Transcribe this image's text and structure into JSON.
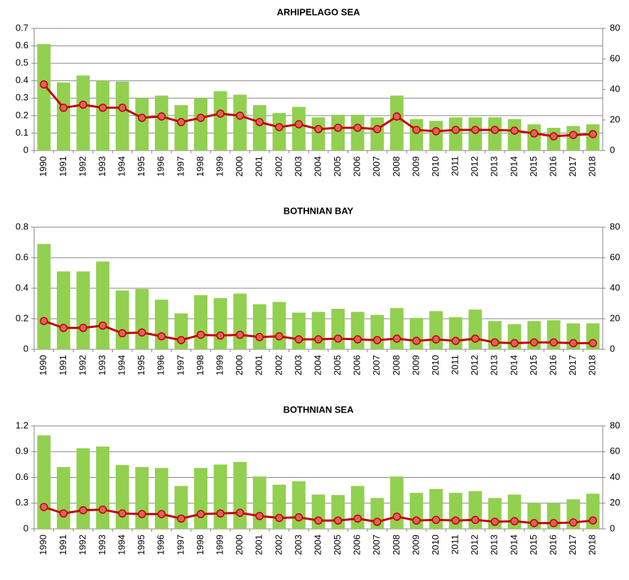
{
  "chart_data": [
    {
      "type": "bar",
      "title": "ARHIPELAGO SEA",
      "categories": [
        "1990",
        "1991",
        "1992",
        "1993",
        "1994",
        "1995",
        "1996",
        "1997",
        "1998",
        "1999",
        "2000",
        "2001",
        "2002",
        "2003",
        "2004",
        "2005",
        "2006",
        "2007",
        "2008",
        "2009",
        "2010",
        "2011",
        "2012",
        "2013",
        "2014",
        "2015",
        "2016",
        "2017",
        "2018"
      ],
      "series": [
        {
          "type": "bar",
          "color": "#92d050",
          "values": [
            0.61,
            0.39,
            0.43,
            0.4,
            0.395,
            0.3,
            0.315,
            0.26,
            0.3,
            0.34,
            0.32,
            0.26,
            0.215,
            0.25,
            0.19,
            0.205,
            0.205,
            0.19,
            0.315,
            0.18,
            0.17,
            0.19,
            0.19,
            0.19,
            0.18,
            0.15,
            0.13,
            0.14,
            0.15
          ]
        },
        {
          "type": "line",
          "axis": "y2",
          "color": "#c00000",
          "values": [
            43.3,
            28,
            30,
            28,
            28,
            21.4,
            22.3,
            18.6,
            21.4,
            24.2,
            22.8,
            18.6,
            15.3,
            17.2,
            14,
            14.9,
            14.9,
            14,
            22.3,
            13.5,
            12.6,
            13.5,
            13.5,
            13.5,
            13,
            11.2,
            9.3,
            10.2,
            10.7
          ]
        }
      ],
      "ylim": [
        0,
        0.7
      ],
      "yticks": [
        0,
        0.1,
        0.2,
        0.3,
        0.4,
        0.5,
        0.6,
        0.7
      ],
      "y2lim": [
        0,
        80
      ],
      "y2ticks": [
        0,
        20,
        40,
        60,
        80
      ],
      "grid": true
    },
    {
      "type": "bar",
      "title": "BOTHNIAN BAY",
      "categories": [
        "1990",
        "1991",
        "1992",
        "1993",
        "1994",
        "1995",
        "1996",
        "1997",
        "1998",
        "1999",
        "2000",
        "2001",
        "2002",
        "2003",
        "2004",
        "2005",
        "2006",
        "2007",
        "2008",
        "2009",
        "2010",
        "2011",
        "2012",
        "2013",
        "2014",
        "2015",
        "2016",
        "2017",
        "2018"
      ],
      "series": [
        {
          "type": "bar",
          "color": "#92d050",
          "values": [
            0.69,
            0.51,
            0.51,
            0.575,
            0.385,
            0.395,
            0.325,
            0.235,
            0.355,
            0.335,
            0.365,
            0.295,
            0.31,
            0.24,
            0.245,
            0.265,
            0.245,
            0.225,
            0.27,
            0.205,
            0.25,
            0.21,
            0.26,
            0.185,
            0.165,
            0.185,
            0.19,
            0.17,
            0.17
          ]
        },
        {
          "type": "line",
          "axis": "y2",
          "color": "#c00000",
          "values": [
            18.5,
            14,
            14,
            15.5,
            10.5,
            11,
            8.5,
            6,
            9.5,
            9,
            9.5,
            8,
            8.5,
            6.5,
            6.5,
            7,
            6.5,
            6,
            7,
            5.5,
            6.5,
            5.5,
            7,
            4.5,
            4,
            4.5,
            4.5,
            4,
            4
          ]
        }
      ],
      "ylim": [
        0,
        0.8
      ],
      "yticks": [
        0,
        0.2,
        0.4,
        0.6,
        0.8
      ],
      "y2lim": [
        0,
        80
      ],
      "y2ticks": [
        0,
        20,
        40,
        60,
        80
      ],
      "grid": true
    },
    {
      "type": "bar",
      "title": "BOTHNIAN SEA",
      "categories": [
        "1990",
        "1991",
        "1992",
        "1993",
        "1994",
        "1995",
        "1996",
        "1997",
        "1998",
        "1999",
        "2000",
        "2001",
        "2002",
        "2003",
        "2004",
        "2005",
        "2006",
        "2007",
        "2008",
        "2009",
        "2010",
        "2011",
        "2012",
        "2013",
        "2014",
        "2015",
        "2016",
        "2017",
        "2018"
      ],
      "series": [
        {
          "type": "bar",
          "color": "#92d050",
          "values": [
            1.09,
            0.72,
            0.94,
            0.96,
            0.745,
            0.72,
            0.71,
            0.5,
            0.71,
            0.75,
            0.78,
            0.61,
            0.515,
            0.555,
            0.4,
            0.395,
            0.5,
            0.36,
            0.61,
            0.42,
            0.465,
            0.42,
            0.44,
            0.36,
            0.4,
            0.3,
            0.3,
            0.345,
            0.41
          ]
        },
        {
          "type": "line",
          "axis": "y2",
          "color": "#c00000",
          "values": [
            17,
            12,
            14.5,
            15,
            12,
            11.5,
            11.5,
            8,
            11.5,
            12,
            12.5,
            10,
            8.5,
            9,
            6.5,
            6.5,
            8,
            5.5,
            9.5,
            6.5,
            7,
            6.5,
            7,
            5.5,
            6,
            4.5,
            4.5,
            5,
            6.5
          ]
        }
      ],
      "ylim": [
        0,
        1.2
      ],
      "yticks": [
        0,
        0.3,
        0.6,
        0.9,
        1.2
      ],
      "y2lim": [
        0,
        80
      ],
      "y2ticks": [
        0,
        20,
        40,
        60,
        80
      ],
      "grid": true
    }
  ]
}
